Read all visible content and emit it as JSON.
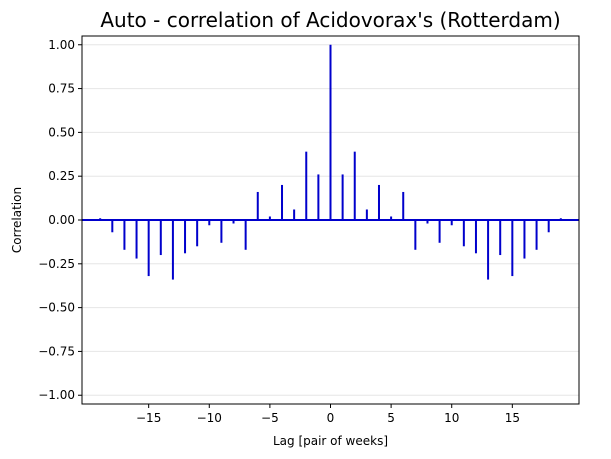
{
  "chart_data": {
    "type": "bar",
    "title": "Auto - correlation of Acidovorax's (Rotterdam)",
    "xlabel": "Lag [pair of weeks]",
    "ylabel": "Correlation",
    "xlim": [
      -20.5,
      20.5
    ],
    "ylim": [
      -1.05,
      1.05
    ],
    "x_ticks": [
      -15,
      -10,
      -5,
      0,
      5,
      10,
      15
    ],
    "x_tick_labels": [
      "−15",
      "−10",
      "−5",
      "0",
      "5",
      "10",
      "15"
    ],
    "y_ticks": [
      1.0,
      0.75,
      0.5,
      0.25,
      0.0,
      -0.25,
      -0.5,
      -0.75,
      -1.0
    ],
    "y_tick_labels": [
      "1.00",
      "0.75",
      "0.50",
      "0.25",
      "0.00",
      "−0.25",
      "−0.50",
      "−0.75",
      "−1.00"
    ],
    "grid": "horizontal",
    "color": "#0000cc",
    "x": [
      -19,
      -18,
      -17,
      -16,
      -15,
      -14,
      -13,
      -12,
      -11,
      -10,
      -9,
      -8,
      -7,
      -6,
      -5,
      -4,
      -3,
      -2,
      -1,
      0,
      1,
      2,
      3,
      4,
      5,
      6,
      7,
      8,
      9,
      10,
      11,
      12,
      13,
      14,
      15,
      16,
      17,
      18,
      19
    ],
    "values": [
      0.01,
      -0.07,
      -0.17,
      -0.22,
      -0.32,
      -0.2,
      -0.34,
      -0.19,
      -0.15,
      -0.03,
      -0.13,
      -0.02,
      -0.17,
      0.16,
      0.02,
      0.2,
      0.06,
      0.39,
      0.26,
      1.0,
      0.26,
      0.39,
      0.06,
      0.2,
      0.02,
      0.16,
      -0.17,
      -0.02,
      -0.13,
      -0.03,
      -0.15,
      -0.19,
      -0.34,
      -0.2,
      -0.32,
      -0.22,
      -0.17,
      -0.07,
      0.01
    ]
  }
}
